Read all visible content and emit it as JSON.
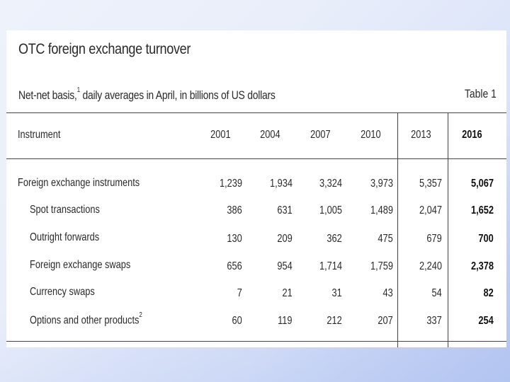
{
  "table": {
    "title": "OTC foreign exchange turnover",
    "subtitle_main": "Net-net basis,",
    "subtitle_sup": "1",
    "subtitle_rest": " daily averages in April, in billions of US dollars",
    "label": "Table 1",
    "header": {
      "instrument": "Instrument",
      "years": [
        "2001",
        "2004",
        "2007",
        "2010",
        "2013",
        "2016"
      ]
    },
    "rows": [
      {
        "label": "Foreign exchange instruments",
        "sup": "",
        "values": [
          "1,239",
          "1,934",
          "3,324",
          "3,973",
          "5,357",
          "5,067"
        ]
      },
      {
        "label": "Spot transactions",
        "sup": "",
        "values": [
          "386",
          "631",
          "1,005",
          "1,489",
          "2,047",
          "1,652"
        ]
      },
      {
        "label": "Outright forwards",
        "sup": "",
        "values": [
          "130",
          "209",
          "362",
          "475",
          "679",
          "700"
        ]
      },
      {
        "label": "Foreign exchange swaps",
        "sup": "",
        "values": [
          "656",
          "954",
          "1,714",
          "1,759",
          "2,240",
          "2,378"
        ]
      },
      {
        "label": "Currency swaps",
        "sup": "",
        "values": [
          "7",
          "21",
          "31",
          "43",
          "54",
          "82"
        ]
      },
      {
        "label": "Options and other products",
        "sup": "2",
        "values": [
          "60",
          "119",
          "212",
          "207",
          "337",
          "254"
        ]
      }
    ]
  }
}
